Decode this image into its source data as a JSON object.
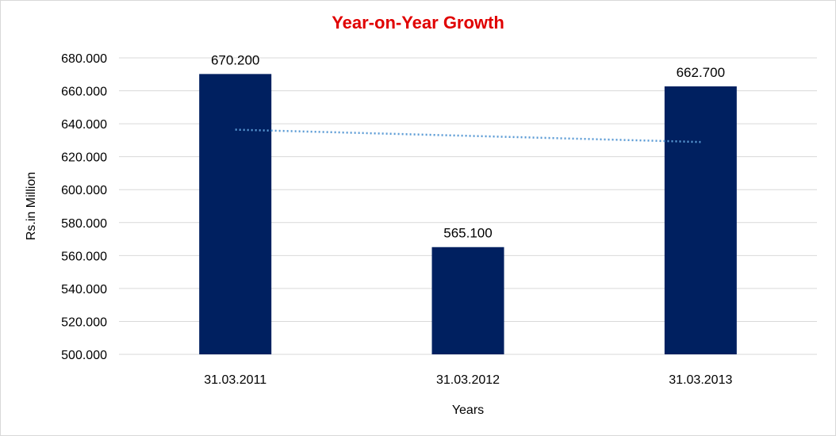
{
  "chart_data": {
    "type": "bar",
    "title": "Year-on-Year Growth",
    "xlabel": "Years",
    "ylabel": "Rs.in Million",
    "categories": [
      "31.03.2011",
      "31.03.2012",
      "31.03.2013"
    ],
    "values": [
      670.2,
      565.1,
      662.7
    ],
    "data_labels": [
      "670.200",
      "565.100",
      "662.700"
    ],
    "ylim": [
      500,
      680
    ],
    "yticks": [
      500,
      520,
      540,
      560,
      580,
      600,
      620,
      640,
      660,
      680
    ],
    "ytick_labels": [
      "500.000",
      "520.000",
      "540.000",
      "560.000",
      "580.000",
      "600.000",
      "620.000",
      "640.000",
      "660.000",
      "680.000"
    ],
    "grid": true,
    "legend": "none",
    "trendline": {
      "type": "linear",
      "style": "dotted"
    },
    "colors": {
      "bar": "#002060",
      "trendline": "#5b9bd5",
      "title": "#e00000",
      "grid": "#d9d9d9"
    }
  }
}
